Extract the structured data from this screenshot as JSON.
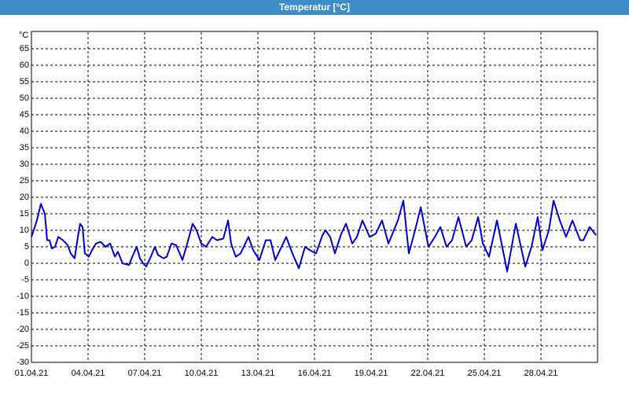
{
  "chart_data": {
    "type": "line",
    "title": "Temperatur [°C]",
    "y_label": "°C",
    "ylim": [
      -30,
      70
    ],
    "yticks": [
      -30,
      -25,
      -20,
      -15,
      -10,
      -5,
      0,
      5,
      10,
      15,
      20,
      25,
      30,
      35,
      40,
      45,
      50,
      55,
      60,
      65
    ],
    "xlim": [
      0,
      30
    ],
    "xticks": [
      {
        "value": 0,
        "label": "01.04.21"
      },
      {
        "value": 3,
        "label": "04.04.21"
      },
      {
        "value": 6,
        "label": "07.04.21"
      },
      {
        "value": 9,
        "label": "10.04.21"
      },
      {
        "value": 12,
        "label": "13.04.21"
      },
      {
        "value": 15,
        "label": "16.04.21"
      },
      {
        "value": 18,
        "label": "19.04.21"
      },
      {
        "value": 21,
        "label": "22.04.21"
      },
      {
        "value": 24,
        "label": "25.04.21"
      },
      {
        "value": 27,
        "label": "28.04.21"
      }
    ],
    "grid": true,
    "series": [
      {
        "color": "#0000cc",
        "x": [
          0,
          0.29,
          0.5,
          0.71,
          0.83,
          0.96,
          1.08,
          1.25,
          1.42,
          1.67,
          1.92,
          2.08,
          2.29,
          2.46,
          2.58,
          2.71,
          2.83,
          3.04,
          3.21,
          3.42,
          3.67,
          3.92,
          4.17,
          4.42,
          4.58,
          4.83,
          5.17,
          5.42,
          5.58,
          5.75,
          5.92,
          6.08,
          6.33,
          6.54,
          6.71,
          7,
          7.17,
          7.42,
          7.67,
          8,
          8.21,
          8.54,
          8.75,
          9,
          9.25,
          9.58,
          9.83,
          10.17,
          10.42,
          10.58,
          10.83,
          11.08,
          11.5,
          11.75,
          12.08,
          12.42,
          12.67,
          12.92,
          13.17,
          13.5,
          13.83,
          14.17,
          14.5,
          14.75,
          15.08,
          15.42,
          15.58,
          15.83,
          16.08,
          16.42,
          16.67,
          17,
          17.25,
          17.54,
          17.92,
          18.25,
          18.58,
          18.92,
          19.42,
          19.71,
          20,
          20.33,
          20.63,
          21.04,
          21.38,
          21.67,
          22,
          22.29,
          22.63,
          23.04,
          23.33,
          23.67,
          23.92,
          24.25,
          24.67,
          25.21,
          25.67,
          26.17,
          26.5,
          26.83,
          27.08,
          27.42,
          27.67,
          28,
          28.33,
          28.67,
          29.08,
          29.25,
          29.58,
          29.92
        ],
        "values": [
          8,
          13,
          18,
          15,
          7,
          7,
          4.5,
          5,
          8,
          7,
          5.5,
          3,
          1.5,
          8,
          12,
          11,
          3,
          2,
          4,
          6,
          6.5,
          5,
          6,
          2,
          3.5,
          0,
          -0.5,
          3,
          5,
          1.5,
          0,
          -1,
          2,
          5,
          2.5,
          1.5,
          2,
          6,
          5.5,
          1,
          5,
          12,
          10,
          6,
          5,
          8,
          7,
          7.5,
          13,
          6,
          2,
          3,
          8,
          4,
          1,
          7,
          7,
          1,
          4,
          8,
          3,
          -1.5,
          5,
          4,
          3,
          8.5,
          10,
          8,
          3,
          9,
          12,
          6,
          8,
          13,
          8,
          9,
          13,
          6,
          13,
          19,
          3,
          10,
          17,
          5,
          8,
          11,
          5,
          7,
          14,
          5,
          7,
          14,
          6,
          2,
          13,
          -2.5,
          12,
          -1,
          5,
          14,
          4,
          10,
          19,
          13,
          8,
          13,
          7,
          7,
          11,
          8.5
        ]
      }
    ]
  }
}
